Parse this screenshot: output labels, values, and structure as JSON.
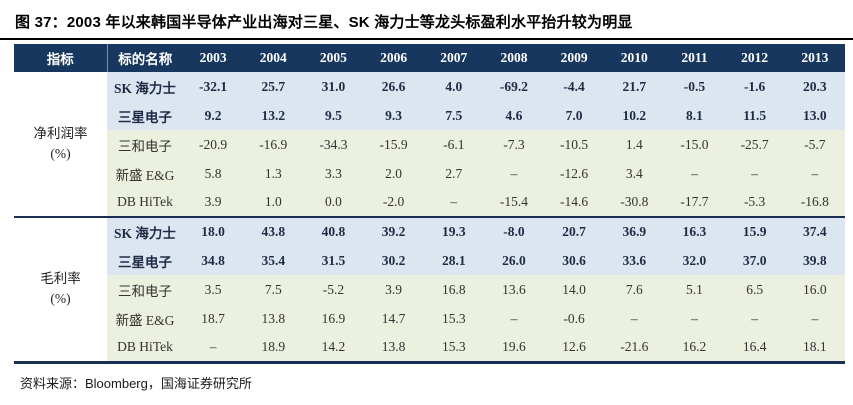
{
  "title": "图 37：2003 年以来韩国半导体产业出海对三星、SK 海力士等龙头标盈利水平抬升较为明显",
  "colors": {
    "header_bg": "#17375E",
    "highlight_row_bg": "#DCE6F1",
    "secondary_row_bg": "#EBF1DE",
    "highlight_text": "#1F2B45",
    "title_rule": "#000000",
    "table_border": "#1B2F55"
  },
  "table": {
    "col_headers": [
      "指标",
      "标的名称",
      "2003",
      "2004",
      "2005",
      "2006",
      "2007",
      "2008",
      "2009",
      "2010",
      "2011",
      "2012",
      "2013"
    ],
    "sections": [
      {
        "metric": "净利润率",
        "unit": "(%)",
        "rows": [
          {
            "name": "SK 海力士",
            "emphasis": true,
            "values": [
              "-32.1",
              "25.7",
              "31.0",
              "26.6",
              "4.0",
              "-69.2",
              "-4.4",
              "21.7",
              "-0.5",
              "-1.6",
              "20.3"
            ]
          },
          {
            "name": "三星电子",
            "emphasis": true,
            "values": [
              "9.2",
              "13.2",
              "9.5",
              "9.3",
              "7.5",
              "4.6",
              "7.0",
              "10.2",
              "8.1",
              "11.5",
              "13.0"
            ]
          },
          {
            "name": "三和电子",
            "emphasis": false,
            "values": [
              "-20.9",
              "-16.9",
              "-34.3",
              "-15.9",
              "-6.1",
              "-7.3",
              "-10.5",
              "1.4",
              "-15.0",
              "-25.7",
              "-5.7"
            ]
          },
          {
            "name": "新盛 E&G",
            "emphasis": false,
            "values": [
              "5.8",
              "1.3",
              "3.3",
              "2.0",
              "2.7",
              "–",
              "-12.6",
              "3.4",
              "–",
              "–",
              "–"
            ]
          },
          {
            "name": "DB HiTek",
            "emphasis": false,
            "values": [
              "3.9",
              "1.0",
              "0.0",
              "-2.0",
              "–",
              "-15.4",
              "-14.6",
              "-30.8",
              "-17.7",
              "-5.3",
              "-16.8"
            ]
          }
        ]
      },
      {
        "metric": "毛利率",
        "unit": "(%)",
        "rows": [
          {
            "name": "SK 海力士",
            "emphasis": true,
            "values": [
              "18.0",
              "43.8",
              "40.8",
              "39.2",
              "19.3",
              "-8.0",
              "20.7",
              "36.9",
              "16.3",
              "15.9",
              "37.4"
            ]
          },
          {
            "name": "三星电子",
            "emphasis": true,
            "values": [
              "34.8",
              "35.4",
              "31.5",
              "30.2",
              "28.1",
              "26.0",
              "30.6",
              "33.6",
              "32.0",
              "37.0",
              "39.8"
            ]
          },
          {
            "name": "三和电子",
            "emphasis": false,
            "values": [
              "3.5",
              "7.5",
              "-5.2",
              "3.9",
              "16.8",
              "13.6",
              "14.0",
              "7.6",
              "5.1",
              "6.5",
              "16.0"
            ]
          },
          {
            "name": "新盛 E&G",
            "emphasis": false,
            "values": [
              "18.7",
              "13.8",
              "16.9",
              "14.7",
              "15.3",
              "–",
              "-0.6",
              "–",
              "–",
              "–",
              "–"
            ]
          },
          {
            "name": "DB HiTek",
            "emphasis": false,
            "values": [
              "–",
              "18.9",
              "14.2",
              "13.8",
              "15.3",
              "19.6",
              "12.6",
              "-21.6",
              "16.2",
              "16.4",
              "18.1"
            ]
          }
        ]
      }
    ]
  },
  "footer": {
    "source_text": "资料来源：Bloomberg，国海证券研究所"
  }
}
